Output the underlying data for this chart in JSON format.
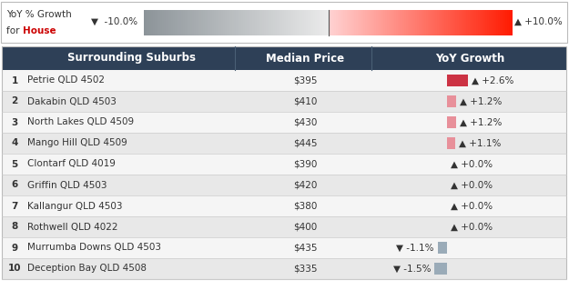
{
  "house_color": "#cc0000",
  "header": [
    "Surrounding Suburbs",
    "Median Price",
    "YoY Growth"
  ],
  "header_bg": "#2e4057",
  "header_text_color": "#ffffff",
  "rows": [
    {
      "rank": 1,
      "suburb": "Petrie QLD 4502",
      "price": "$395",
      "yoy": 2.6,
      "yoy_str": "+2.6%"
    },
    {
      "rank": 2,
      "suburb": "Dakabin QLD 4503",
      "price": "$410",
      "yoy": 1.2,
      "yoy_str": "+1.2%"
    },
    {
      "rank": 3,
      "suburb": "North Lakes QLD 4509",
      "price": "$430",
      "yoy": 1.2,
      "yoy_str": "+1.2%"
    },
    {
      "rank": 4,
      "suburb": "Mango Hill QLD 4509",
      "price": "$445",
      "yoy": 1.1,
      "yoy_str": "+1.1%"
    },
    {
      "rank": 5,
      "suburb": "Clontarf QLD 4019",
      "price": "$390",
      "yoy": 0.0,
      "yoy_str": "+0.0%"
    },
    {
      "rank": 6,
      "suburb": "Griffin QLD 4503",
      "price": "$420",
      "yoy": 0.0,
      "yoy_str": "+0.0%"
    },
    {
      "rank": 7,
      "suburb": "Kallangur QLD 4503",
      "price": "$380",
      "yoy": 0.0,
      "yoy_str": "+0.0%"
    },
    {
      "rank": 8,
      "suburb": "Rothwell QLD 4022",
      "price": "$400",
      "yoy": 0.0,
      "yoy_str": "+0.0%"
    },
    {
      "rank": 9,
      "suburb": "Murrumba Downs QLD 4503",
      "price": "$435",
      "yoy": -1.1,
      "yoy_str": "-1.1%"
    },
    {
      "rank": 10,
      "suburb": "Deception Bay QLD 4508",
      "price": "$335",
      "yoy": -1.5,
      "yoy_str": "-1.5%"
    }
  ],
  "row_bg_odd": "#f5f5f5",
  "row_bg_even": "#e8e8e8",
  "border_color": "#cccccc",
  "text_color": "#333333"
}
